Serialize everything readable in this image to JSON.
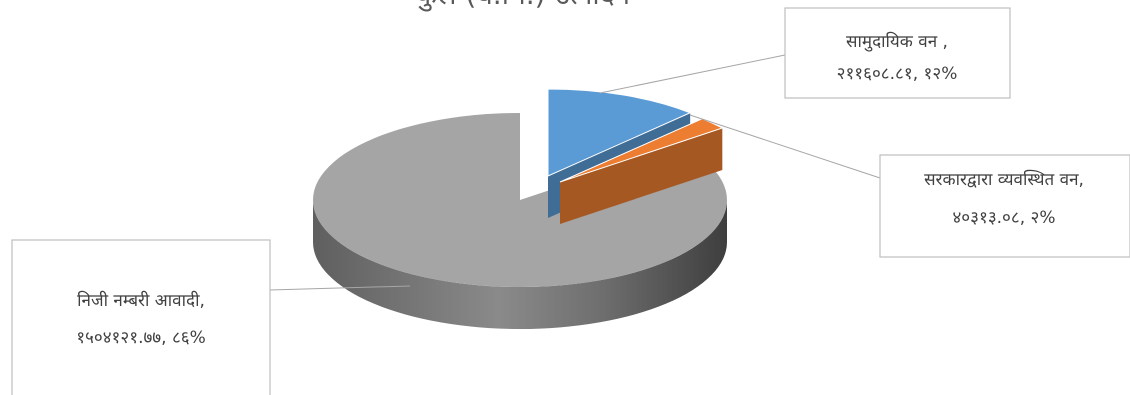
{
  "chart_data": {
    "type": "pie",
    "title": "कुल (घ.मि.) उत्पादन",
    "categories": [
      "सामुदायिक वन",
      "सरकारद्वारा व्यवस्थित वन",
      "निजी नम्बरी आवादी"
    ],
    "series": [
      {
        "values": [
          211608.81,
          40313.08,
          1504121.77
        ]
      }
    ],
    "labels": [
      {
        "line1": "सामुदायिक वन ,",
        "line2": "२११६०८.८१, १२%"
      },
      {
        "line1": "सरकारद्वारा व्यवस्थित वन,",
        "line2": "४०३१३.०८, २%"
      },
      {
        "line1": "निजी नम्बरी आवादी,",
        "line2": "१५०४१२१.७७, ८६%"
      }
    ],
    "percentages": [
      12,
      2,
      86
    ],
    "colors": [
      "#5b9bd5",
      "#ed7d31",
      "#a5a5a5"
    ],
    "legend": "none",
    "style": "3d-exploded"
  }
}
